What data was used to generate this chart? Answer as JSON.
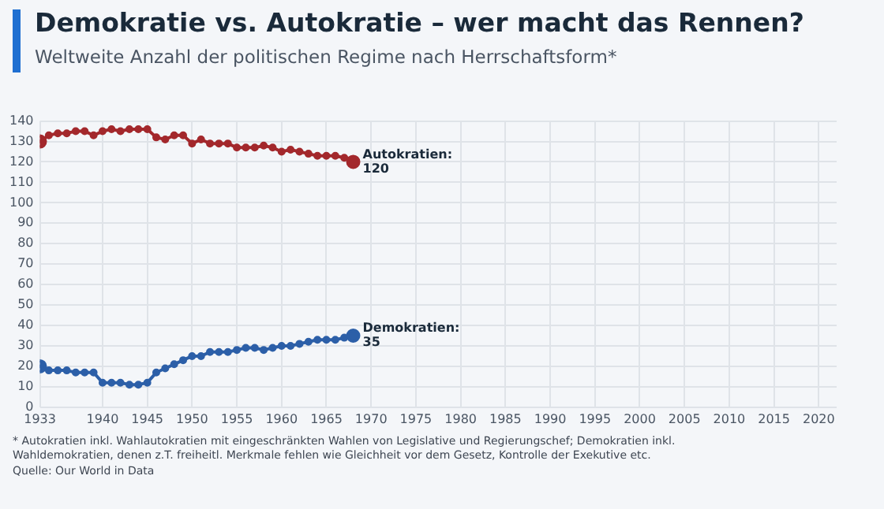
{
  "chart_data": {
    "type": "line",
    "title": "Demokratie vs. Autokratie – wer macht das Rennen?",
    "subtitle": "Weltweite Anzahl der politischen Regime nach Herrschaftsform*",
    "x": [
      1933,
      1934,
      1935,
      1936,
      1937,
      1938,
      1939,
      1940,
      1941,
      1942,
      1943,
      1944,
      1945,
      1946,
      1947,
      1948,
      1949,
      1950,
      1951,
      1952,
      1953,
      1954,
      1955,
      1956,
      1957,
      1958,
      1959,
      1960,
      1961,
      1962,
      1963,
      1964,
      1965,
      1966,
      1967,
      1968
    ],
    "series": [
      {
        "color": "#a3282c",
        "values": [
          130,
          133,
          134,
          134,
          135,
          135,
          133,
          135,
          136,
          135,
          136,
          136,
          136,
          132,
          131,
          133,
          133,
          129,
          131,
          129,
          129,
          129,
          127,
          127,
          127,
          128,
          127,
          125,
          126,
          125,
          124,
          123,
          123,
          123,
          122,
          120
        ]
      },
      {
        "color": "#2c5fa8",
        "values": [
          20,
          18,
          18,
          18,
          17,
          17,
          17,
          12,
          12,
          12,
          11,
          11,
          12,
          17,
          19,
          21,
          23,
          25,
          25,
          27,
          27,
          27,
          28,
          29,
          29,
          28,
          29,
          30,
          30,
          31,
          32,
          33,
          33,
          33,
          34,
          35
        ]
      }
    ],
    "xlim": [
      1933,
      2022
    ],
    "xticks": [
      1933,
      1940,
      1945,
      1950,
      1955,
      1960,
      1965,
      1970,
      1975,
      1980,
      1985,
      1990,
      1995,
      2000,
      2005,
      2010,
      2015,
      2020
    ],
    "ylim": [
      0,
      140
    ],
    "yticks": [
      0,
      10,
      20,
      30,
      40,
      50,
      60,
      70,
      80,
      90,
      100,
      110,
      120,
      130,
      140
    ],
    "grid": true,
    "legend": false,
    "marker": "circle",
    "line_style": "solid",
    "annotations": [
      {
        "text": "Autokratien:\n120",
        "x": 1968,
        "y": 120
      },
      {
        "text": "Demokratien:\n35",
        "x": 1968,
        "y": 35
      },
      "* Autokratien inkl. Wahlautokratien mit eingeschränkten Wahlen von Legislative und Regierungschef; Demokratien inkl. Wahldemokratien, denen z.T. freiheitl. Merkmale fehlen wie Gleichheit vor dem Gesetz, Kontrolle der Exekutive etc.",
      "Quelle: Our World in Data"
    ]
  }
}
